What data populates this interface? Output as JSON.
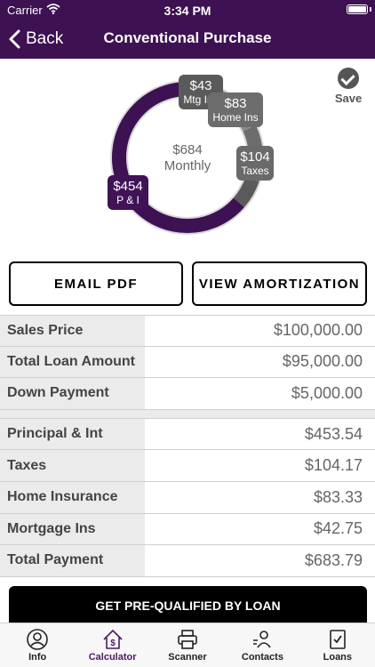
{
  "status_bar": {
    "carrier": "Carrier",
    "time": "3:34 PM"
  },
  "nav": {
    "back_label": "Back",
    "title": "Conventional Purchase"
  },
  "save_label": "Save",
  "donut": {
    "center_amount": "$684",
    "center_label": "Monthly",
    "segments": [
      {
        "amount": "$454",
        "label": "P & I",
        "value": 453.54,
        "color": "#3d1152"
      },
      {
        "amount": "$104",
        "label": "Taxes",
        "value": 104.17,
        "color": "#8c8c8c"
      },
      {
        "amount": "$83",
        "label": "Home Ins",
        "value": 83.33,
        "color": "#6d6d6d"
      },
      {
        "amount": "$43",
        "label": "Mtg Ins",
        "value": 42.75,
        "color": "#5a5a5a"
      }
    ]
  },
  "actions": {
    "email_pdf": "EMAIL PDF",
    "view_amortization": "VIEW AMORTIZATION"
  },
  "loan_summary": [
    {
      "label": "Sales Price",
      "value": "$100,000.00"
    },
    {
      "label": "Total Loan Amount",
      "value": "$95,000.00"
    },
    {
      "label": "Down Payment",
      "value": "$5,000.00"
    }
  ],
  "payment_breakdown": [
    {
      "label": "Principal & Int",
      "value": "$453.54"
    },
    {
      "label": "Taxes",
      "value": "$104.17"
    },
    {
      "label": "Home Insurance",
      "value": "$83.33"
    },
    {
      "label": "Mortgage Ins",
      "value": "$42.75"
    },
    {
      "label": "Total Payment",
      "value": "$683.79"
    }
  ],
  "prequal_button": "GET PRE-QUALIFIED BY LOAN",
  "tabs": [
    {
      "label": "Info",
      "icon": "person-icon"
    },
    {
      "label": "Calculator",
      "icon": "house-dollar-icon",
      "active": true
    },
    {
      "label": "Scanner",
      "icon": "printer-icon"
    },
    {
      "label": "Contacts",
      "icon": "contacts-icon"
    },
    {
      "label": "Loans",
      "icon": "checklist-icon"
    }
  ]
}
